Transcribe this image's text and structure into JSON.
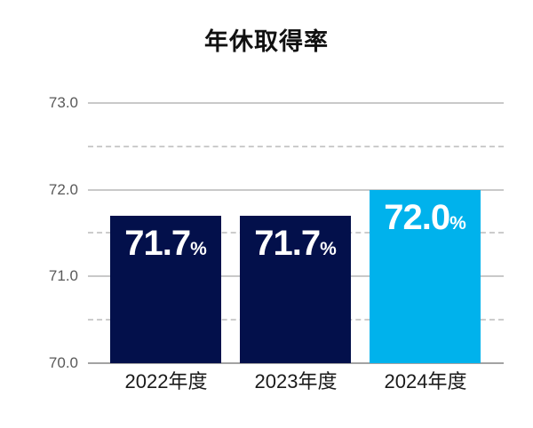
{
  "title": "年休取得率",
  "chart_data": {
    "type": "bar",
    "title": "年休取得率",
    "categories": [
      "2022年度",
      "2023年度",
      "2024年度"
    ],
    "values": [
      71.7,
      71.7,
      72.0
    ],
    "value_texts": [
      "71.7",
      "71.7",
      "72.0"
    ],
    "unit": "%",
    "xlabel": "",
    "ylabel": "",
    "ylim": [
      70.0,
      73.0
    ],
    "yticks": [
      "73.0",
      "72.0",
      "71.0",
      "70.0"
    ],
    "ytick_values": [
      73.0,
      72.0,
      71.0,
      70.0
    ],
    "grid": "solid lines at integer values, dashed lines at half values",
    "legend": "none",
    "bar_colors": [
      "#03104B",
      "#03104B",
      "#00B2EC"
    ],
    "value_label_color": "#ffffff",
    "axis_label_color": "#595959",
    "category_label_color": "#1a1a1a"
  }
}
